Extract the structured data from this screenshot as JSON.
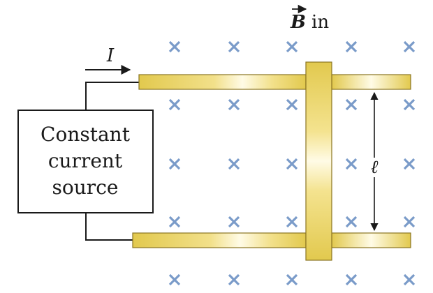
{
  "labels": {
    "current": "I",
    "field_symbol": "B",
    "field_suffix": "in",
    "length": "ℓ",
    "source_lines": [
      "Constant",
      "current",
      "source"
    ]
  },
  "colors": {
    "rail_gold": "#e9d262",
    "rail_light": "#fffbe0",
    "cross_blue": "#7a9bc9",
    "ink": "#1a1a1a"
  },
  "field": {
    "direction": "into page",
    "marker": "cross"
  }
}
